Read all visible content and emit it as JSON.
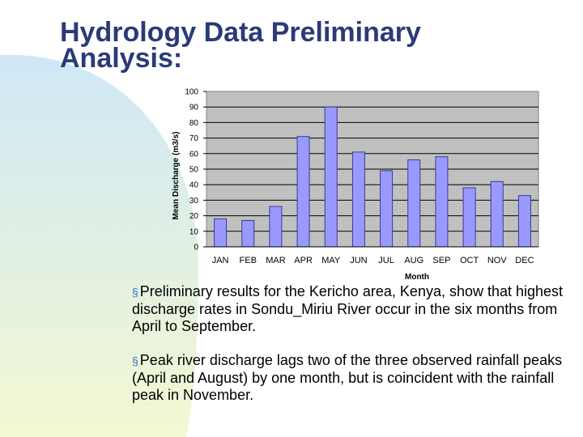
{
  "slide": {
    "title_lines": [
      "Hydrology Data Preliminary",
      "Analysis:"
    ],
    "bullet_marker": "§",
    "bullets": [
      "Preliminary results for the Kericho area, Kenya, show that highest discharge rates in Sondu_Miriu River occur in the six months from April to September.",
      "Peak river discharge lags two of the three observed rainfall peaks (April and August) by one month, but is coincident with the rainfall peak in November."
    ]
  },
  "chart_data": {
    "type": "bar",
    "title": "",
    "xlabel": "Month",
    "ylabel": "Mean Discharge (m3/s)",
    "categories": [
      "JAN",
      "FEB",
      "MAR",
      "APR",
      "MAY",
      "JUN",
      "JUL",
      "AUG",
      "SEP",
      "OCT",
      "NOV",
      "DEC"
    ],
    "values": [
      18,
      17,
      26,
      71,
      90,
      61,
      49,
      56,
      58,
      38,
      42,
      33
    ],
    "ylim": [
      0,
      100
    ],
    "yticks": [
      0,
      10,
      20,
      30,
      40,
      50,
      60,
      70,
      80,
      90,
      100
    ],
    "grid": true,
    "legend": "none",
    "colors": {
      "bar": "#9999ff",
      "bar_edge": "#3a3a99",
      "plot_bg": "#c0c0c0",
      "grid": "#000000"
    }
  },
  "theme": {
    "title_color": "#2b3a78",
    "gradient_top": "#cfe8f6",
    "gradient_bottom": "#f3f8d2"
  }
}
